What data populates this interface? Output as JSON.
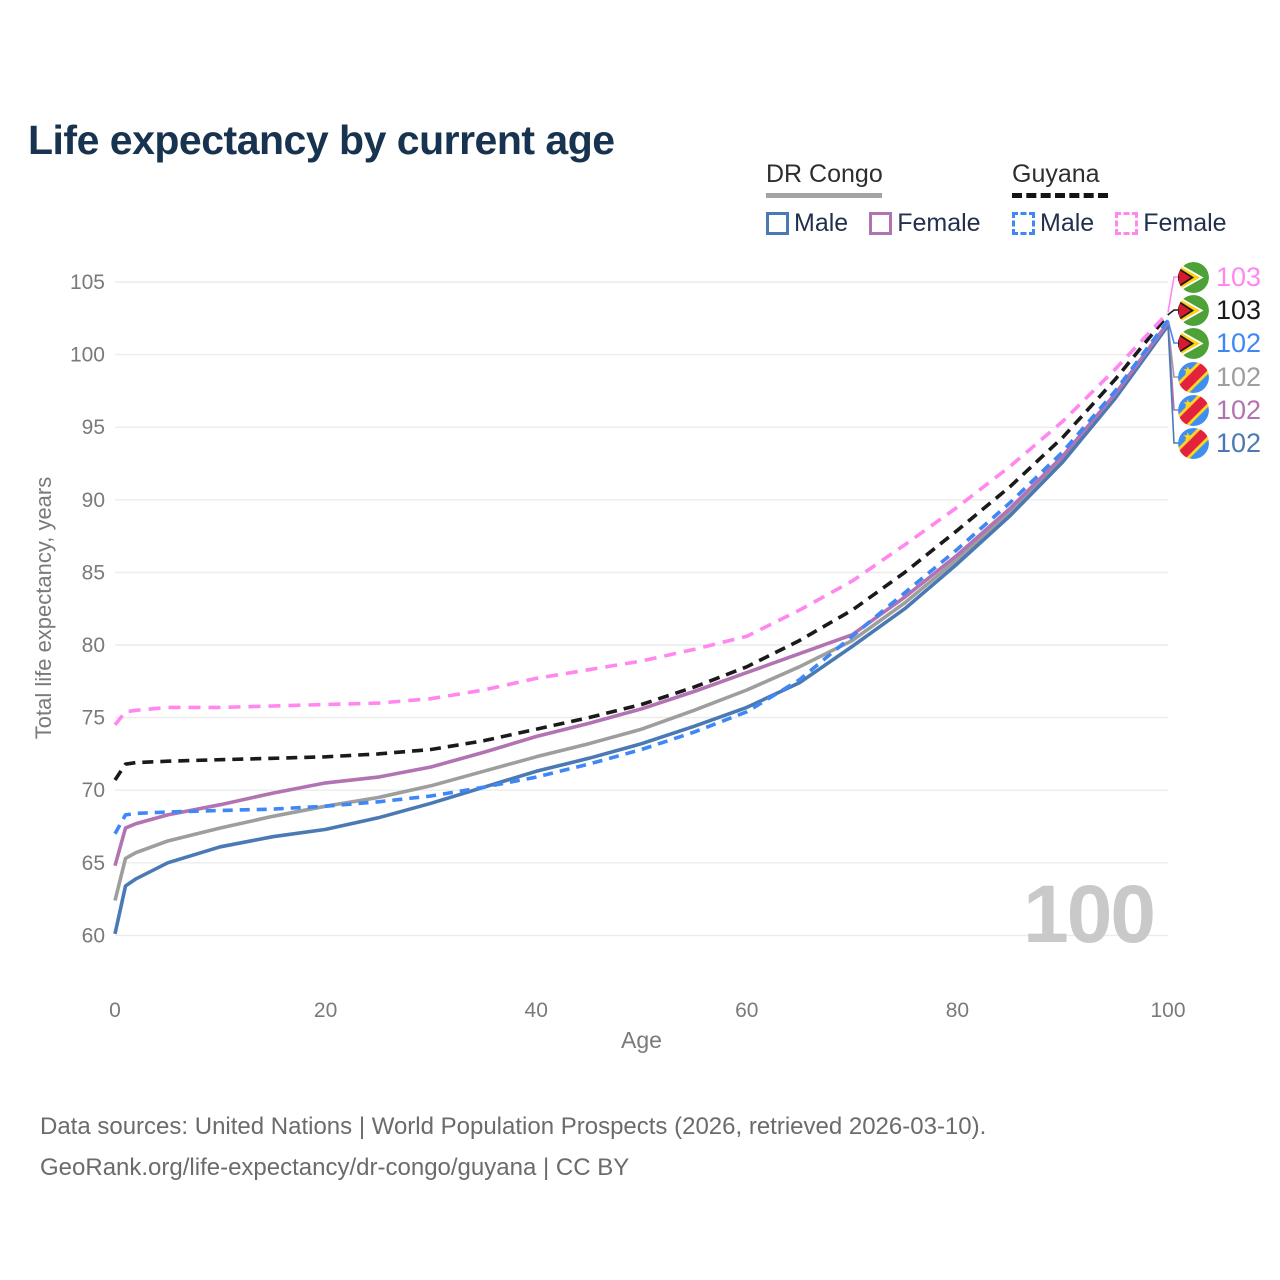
{
  "title": "Life expectancy by current age",
  "colors": {
    "title": "#17334f",
    "axis_text": "#7a7a7a",
    "grid": "#ececec",
    "watermark": "#c9c9c9",
    "footer_text": "#6b6b6b"
  },
  "legend": {
    "groups": [
      {
        "name": "DR Congo",
        "line_style": "solid",
        "underline_color": "#a3a3a3",
        "items": [
          {
            "label": "Male",
            "color": "#4a79b4"
          },
          {
            "label": "Female",
            "color": "#b273b3"
          }
        ]
      },
      {
        "name": "Guyana",
        "line_style": "dashed",
        "underline_color": "#141414",
        "items": [
          {
            "label": "Male",
            "color": "#3f86f7"
          },
          {
            "label": "Female",
            "color": "#ff87ef"
          }
        ]
      }
    ]
  },
  "watermark": "100",
  "end_labels": [
    {
      "value": "103",
      "series": "Guyana Female",
      "flag": "guyana",
      "color": "#ff87ef"
    },
    {
      "value": "103",
      "series": "Guyana Both sexes",
      "flag": "guyana",
      "color": "#1a1a1a"
    },
    {
      "value": "102",
      "series": "Guyana Male",
      "flag": "guyana",
      "color": "#3f86f7"
    },
    {
      "value": "102",
      "series": "DR Congo Both sexes",
      "flag": "dr-congo",
      "color": "#9e9e9e"
    },
    {
      "value": "102",
      "series": "DR Congo Female",
      "flag": "dr-congo",
      "color": "#b273b3"
    },
    {
      "value": "102",
      "series": "DR Congo Male",
      "flag": "dr-congo",
      "color": "#4a79b4"
    }
  ],
  "footer": {
    "line1": "Data sources: United Nations | World Population Prospects (2026, retrieved 2026-03-10).",
    "line2": "GeoRank.org/life-expectancy/dr-congo/guyana | CC BY"
  },
  "chart_data": {
    "type": "line",
    "title": "Life expectancy by current age",
    "xlabel": "Age",
    "ylabel": "Total life expectancy, years",
    "xlim": [
      0,
      100
    ],
    "ylim": [
      58,
      107
    ],
    "xticks": [
      0,
      20,
      40,
      60,
      80,
      100
    ],
    "yticks": [
      60,
      65,
      70,
      75,
      80,
      85,
      90,
      95,
      100,
      105
    ],
    "grid": "horizontal",
    "ages": [
      0,
      1,
      2,
      5,
      10,
      15,
      20,
      25,
      30,
      35,
      40,
      45,
      50,
      55,
      60,
      65,
      70,
      75,
      80,
      85,
      90,
      95,
      100
    ],
    "series": [
      {
        "name": "DR Congo Both sexes",
        "country": "DR Congo",
        "sex": "Both sexes",
        "style": "solid",
        "color": "#9e9e9e",
        "values": [
          62.4,
          65.3,
          65.7,
          66.5,
          67.4,
          68.2,
          68.9,
          69.5,
          70.3,
          71.3,
          72.3,
          73.2,
          74.2,
          75.5,
          76.9,
          78.5,
          80.3,
          82.9,
          85.9,
          89.1,
          92.8,
          97.2,
          102.1
        ]
      },
      {
        "name": "DR Congo Male",
        "country": "DR Congo",
        "sex": "Male",
        "style": "solid",
        "color": "#4a79b4",
        "values": [
          60.1,
          63.4,
          63.9,
          65.0,
          66.1,
          66.8,
          67.3,
          68.1,
          69.1,
          70.2,
          71.3,
          72.2,
          73.2,
          74.4,
          75.7,
          77.4,
          79.9,
          82.5,
          85.6,
          88.9,
          92.6,
          97.0,
          102.0
        ]
      },
      {
        "name": "DR Congo Female",
        "country": "DR Congo",
        "sex": "Female",
        "style": "solid",
        "color": "#b273b3",
        "values": [
          64.8,
          67.4,
          67.7,
          68.3,
          69.0,
          69.8,
          70.5,
          70.9,
          71.6,
          72.6,
          73.7,
          74.6,
          75.6,
          76.8,
          78.1,
          79.4,
          80.7,
          83.3,
          86.2,
          89.4,
          93.0,
          97.3,
          102.2
        ]
      },
      {
        "name": "Guyana Male",
        "country": "Guyana",
        "sex": "Male",
        "style": "dashed",
        "dash": "10 7",
        "color": "#3f86f7",
        "values": [
          67.0,
          68.3,
          68.4,
          68.5,
          68.6,
          68.7,
          68.9,
          69.2,
          69.6,
          70.2,
          70.9,
          71.8,
          72.8,
          74.0,
          75.4,
          77.6,
          80.6,
          83.6,
          86.6,
          89.8,
          93.3,
          97.5,
          102.35
        ]
      },
      {
        "name": "Guyana Both sexes",
        "country": "Guyana",
        "sex": "Both sexes",
        "style": "dashed",
        "dash": "11 7",
        "color": "#1a1a1a",
        "values": [
          70.7,
          71.8,
          71.9,
          72.0,
          72.1,
          72.2,
          72.3,
          72.5,
          72.8,
          73.4,
          74.2,
          75.0,
          75.9,
          77.1,
          78.5,
          80.3,
          82.4,
          85.0,
          87.9,
          90.9,
          94.3,
          98.3,
          102.75
        ]
      },
      {
        "name": "Guyana Female",
        "country": "Guyana",
        "sex": "Female",
        "style": "dashed",
        "dash": "12 8",
        "color": "#ff87ef",
        "values": [
          74.5,
          75.4,
          75.5,
          75.7,
          75.7,
          75.8,
          75.9,
          76.0,
          76.3,
          76.9,
          77.7,
          78.3,
          78.9,
          79.7,
          80.6,
          82.4,
          84.4,
          86.9,
          89.5,
          92.3,
          95.4,
          99.0,
          102.9
        ]
      }
    ]
  }
}
